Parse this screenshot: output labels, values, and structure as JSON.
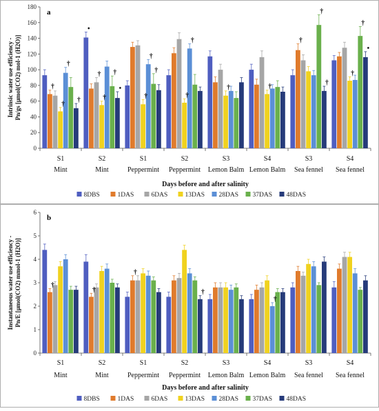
{
  "chart_data": [
    {
      "type": "bar",
      "panel": "a",
      "ylabel": [
        "Intrinsic water use efficiency -",
        "Pn/gs [μmol(CO2) mol-1 (H2O)]"
      ],
      "xlabel": "Days before and after salinity",
      "ylim": [
        0,
        180
      ],
      "yticks": [
        0,
        20,
        40,
        60,
        80,
        100,
        120,
        140,
        160,
        180
      ],
      "groups": [
        {
          "site": "S1",
          "crop": "Mint"
        },
        {
          "site": "S2",
          "crop": "Mint"
        },
        {
          "site": "S1",
          "crop": "Peppermint"
        },
        {
          "site": "S2",
          "crop": "Peppermint"
        },
        {
          "site": "S3",
          "crop": "Lemon Balm"
        },
        {
          "site": "S4",
          "crop": "Lemon Balm"
        },
        {
          "site": "S3",
          "crop": "Sea fennel"
        },
        {
          "site": "S4",
          "crop": "Sea fennel"
        }
      ],
      "series": [
        {
          "name": "8DBS",
          "values": [
            93,
            141,
            80,
            93,
            117,
            100,
            93,
            112
          ],
          "errors": [
            7,
            7,
            6,
            7,
            7,
            7,
            7,
            6
          ]
        },
        {
          "name": "1DAS",
          "values": [
            69,
            76,
            129,
            121,
            84,
            81,
            125,
            117
          ],
          "errors": [
            5,
            6,
            6,
            7,
            7,
            7,
            8,
            5
          ]
        },
        {
          "name": "6DAS",
          "values": [
            67,
            84,
            131,
            139,
            100,
            116,
            112,
            128
          ],
          "errors": [
            6,
            6,
            6,
            8,
            7,
            8,
            7,
            7
          ]
        },
        {
          "name": "13DAS",
          "values": [
            47,
            55,
            56,
            58,
            67,
            69,
            98,
            86
          ],
          "errors": [
            5,
            5,
            6,
            5,
            6,
            5,
            6,
            5
          ]
        },
        {
          "name": "28DAS",
          "values": [
            96,
            104,
            107,
            127,
            73,
            76,
            93,
            87
          ],
          "errors": [
            7,
            7,
            6,
            6,
            6,
            5,
            6,
            6
          ]
        },
        {
          "name": "37DAS",
          "values": [
            78,
            79,
            82,
            81,
            64,
            78,
            157,
            143
          ],
          "errors": [
            12,
            13,
            13,
            13,
            8,
            8,
            13,
            12
          ]
        },
        {
          "name": "48DAS",
          "values": [
            51,
            64,
            74,
            73,
            84,
            72,
            73,
            116
          ],
          "errors": [
            6,
            8,
            7,
            5,
            6,
            6,
            6,
            7
          ]
        }
      ],
      "annotations": [
        {
          "group": 0,
          "series": 1,
          "text": "†"
        },
        {
          "group": 0,
          "series": 3,
          "text": "†"
        },
        {
          "group": 0,
          "series": 4,
          "text": "†"
        },
        {
          "group": 0,
          "series": 6,
          "text": "†"
        },
        {
          "group": 1,
          "series": 0,
          "text": "•"
        },
        {
          "group": 1,
          "series": 2,
          "text": "†"
        },
        {
          "group": 1,
          "series": 3,
          "text": "†"
        },
        {
          "group": 1,
          "series": 5,
          "text": "†"
        },
        {
          "group": 1,
          "series": 6,
          "text": "•"
        },
        {
          "group": 2,
          "series": 3,
          "text": "†"
        },
        {
          "group": 2,
          "series": 4,
          "text": "†"
        },
        {
          "group": 2,
          "series": 5,
          "text": "†"
        },
        {
          "group": 3,
          "series": 3,
          "text": "†"
        },
        {
          "group": 3,
          "series": 4,
          "text": "†"
        },
        {
          "group": 4,
          "series": 3,
          "text": "†"
        },
        {
          "group": 5,
          "series": 3,
          "text": "†"
        },
        {
          "group": 6,
          "series": 1,
          "text": "†"
        },
        {
          "group": 6,
          "series": 5,
          "text": "†"
        },
        {
          "group": 6,
          "series": 6,
          "text": "†"
        },
        {
          "group": 7,
          "series": 3,
          "text": "†"
        },
        {
          "group": 7,
          "series": 5,
          "text": "†"
        },
        {
          "group": 7,
          "series": 6,
          "text": "•"
        }
      ],
      "legend": "bottom",
      "grid": false
    },
    {
      "type": "bar",
      "panel": "b",
      "ylabel": [
        "Instantaneous water use efficiency -",
        "Pn/E [μmol(CO2) mmol-1 (H2O)]"
      ],
      "xlabel": "Days before and after salinity",
      "ylim": [
        0,
        6
      ],
      "yticks": [
        0,
        1,
        2,
        3,
        4,
        5,
        6
      ],
      "groups": [
        {
          "site": "S1",
          "crop": "Mint"
        },
        {
          "site": "S2",
          "crop": "Mint"
        },
        {
          "site": "S1",
          "crop": "Peppermint"
        },
        {
          "site": "S2",
          "crop": "Peppermint"
        },
        {
          "site": "S3",
          "crop": "Lemon Balm"
        },
        {
          "site": "S4",
          "crop": "Lemon Balm"
        },
        {
          "site": "S3",
          "crop": "Sea fennel"
        },
        {
          "site": "S4",
          "crop": "Sea fennel"
        }
      ],
      "series": [
        {
          "name": "8DBS",
          "values": [
            4.4,
            3.9,
            2.4,
            2.4,
            2.3,
            2.3,
            2.8,
            2.8
          ],
          "errors": [
            0.25,
            0.3,
            0.2,
            0.2,
            0.2,
            0.2,
            0.2,
            0.25
          ]
        },
        {
          "name": "1DAS",
          "values": [
            2.6,
            2.4,
            3.1,
            3.1,
            2.8,
            2.7,
            3.5,
            3.6
          ],
          "errors": [
            0.15,
            0.15,
            0.2,
            0.2,
            0.2,
            0.2,
            0.2,
            0.2
          ]
        },
        {
          "name": "6DAS",
          "values": [
            2.9,
            2.8,
            3.1,
            3.2,
            2.8,
            2.8,
            3.3,
            4.1
          ],
          "errors": [
            0.15,
            0.15,
            0.2,
            0.2,
            0.2,
            0.2,
            0.15,
            0.2
          ]
        },
        {
          "name": "13DAS",
          "values": [
            3.7,
            3.5,
            3.4,
            4.4,
            2.8,
            3.1,
            3.8,
            4.1
          ],
          "errors": [
            0.2,
            0.2,
            0.2,
            0.2,
            0.2,
            0.2,
            0.2,
            0.2
          ]
        },
        {
          "name": "28DAS",
          "values": [
            4.0,
            3.6,
            3.3,
            3.4,
            2.7,
            2.0,
            3.7,
            3.4
          ],
          "errors": [
            0.2,
            0.2,
            0.2,
            0.2,
            0.2,
            0.15,
            0.2,
            0.2
          ]
        },
        {
          "name": "37DAS",
          "values": [
            2.7,
            3.0,
            3.1,
            3.1,
            2.8,
            2.6,
            2.9,
            2.7
          ],
          "errors": [
            0.15,
            0.15,
            0.15,
            0.15,
            0.15,
            0.15,
            0.1,
            0.1
          ]
        },
        {
          "name": "48DAS",
          "values": [
            2.7,
            2.8,
            2.6,
            2.3,
            2.3,
            2.6,
            3.9,
            3.1
          ],
          "errors": [
            0.15,
            0.15,
            0.15,
            0.15,
            0.15,
            0.15,
            0.2,
            0.2
          ]
        }
      ],
      "annotations": [
        {
          "group": 0,
          "series": 1,
          "text": "†"
        },
        {
          "group": 1,
          "series": 1,
          "text": "†"
        },
        {
          "group": 2,
          "series": 1,
          "text": "†"
        },
        {
          "group": 3,
          "series": 6,
          "text": "†"
        },
        {
          "group": 5,
          "series": 4,
          "text": "†"
        }
      ],
      "legend": "bottom",
      "grid": false
    }
  ],
  "colors": [
    "#4f5ec0",
    "#e07b2c",
    "#a6a6a6",
    "#f0d21f",
    "#5b8fd6",
    "#6ab04c",
    "#263b7a"
  ]
}
